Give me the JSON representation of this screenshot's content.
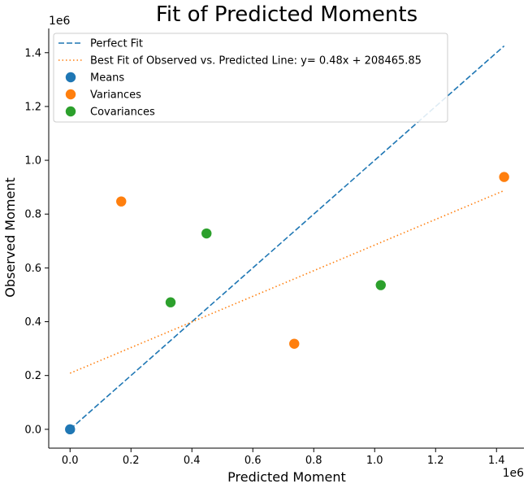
{
  "chart_data": {
    "type": "scatter",
    "title": "Fit of Predicted Moments",
    "xlabel": "Predicted Moment",
    "ylabel": "Observed Moment",
    "x_offset_label": "1e6",
    "y_offset_label": "1e6",
    "xlim": [
      -0.07,
      1.49
    ],
    "ylim": [
      -0.07,
      1.49
    ],
    "x_ticks": [
      0.0,
      0.2,
      0.4,
      0.6,
      0.8,
      1.0,
      1.2,
      1.4
    ],
    "y_ticks": [
      0.0,
      0.2,
      0.4,
      0.6,
      0.8,
      1.0,
      1.2,
      1.4
    ],
    "x_tick_labels": [
      "0.0",
      "0.2",
      "0.4",
      "0.6",
      "0.8",
      "1.0",
      "1.2",
      "1.4"
    ],
    "y_tick_labels": [
      "0.0",
      "0.2",
      "0.4",
      "0.6",
      "0.8",
      "1.0",
      "1.2",
      "1.4"
    ],
    "grid": false,
    "legend_position": "top-left",
    "lines": [
      {
        "name": "Perfect Fit",
        "style": "dashed",
        "color": "#1f77b4",
        "x": [
          0.0,
          1.425
        ],
        "y": [
          0.0,
          1.425
        ]
      },
      {
        "name": "Best Fit of Observed vs. Predicted Line: y= 0.48x + 208465.85",
        "style": "dotted",
        "color": "#ff7f0e",
        "x": [
          0.0,
          1.425
        ],
        "y": [
          0.2085,
          0.8875
        ]
      }
    ],
    "series": [
      {
        "name": "Means",
        "color": "#1f77b4",
        "x": [
          0.0
        ],
        "y": [
          0.0
        ]
      },
      {
        "name": "Variances",
        "color": "#ff7f0e",
        "x": [
          0.168,
          0.736,
          1.425
        ],
        "y": [
          0.847,
          0.318,
          0.938
        ]
      },
      {
        "name": "Covariances",
        "color": "#2ca02c",
        "x": [
          0.33,
          0.448,
          1.02
        ],
        "y": [
          0.472,
          0.728,
          0.536
        ]
      }
    ]
  }
}
